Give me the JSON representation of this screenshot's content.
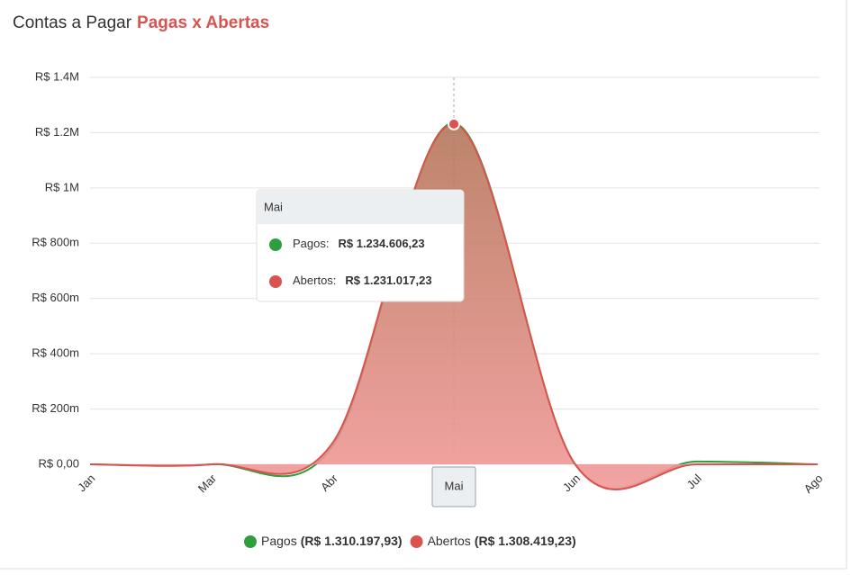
{
  "chart_data": {
    "type": "area",
    "title": "Contas a Pagar",
    "subtitle": "Pagas x Abertas",
    "categories": [
      "Jan",
      "Mar",
      "Abr",
      "Mai",
      "Jun",
      "Jul",
      "Ago"
    ],
    "series": [
      {
        "name": "Pagos",
        "color": "#2e9e3e",
        "values": [
          0,
          0,
          65592,
          1234606.23,
          0,
          10000,
          0
        ],
        "value_labels": [
          null,
          null,
          null,
          "R$ 1.234.606,23",
          null,
          null,
          null
        ],
        "total_label": "(R$ 1.310.197,93)"
      },
      {
        "name": "Abertos",
        "color": "#d9534f",
        "values": [
          0,
          0,
          77402,
          1231017.23,
          0,
          0,
          0
        ],
        "value_labels": [
          null,
          null,
          null,
          "R$ 1.231.017,23",
          null,
          null,
          null
        ],
        "total_label": "(R$ 1.308.419,23)"
      }
    ],
    "ylim": [
      0,
      1400000
    ],
    "yticks": [
      {
        "value": 0,
        "label": "R$ 0,00"
      },
      {
        "value": 200000,
        "label": "R$ 200m"
      },
      {
        "value": 400000,
        "label": "R$ 400m"
      },
      {
        "value": 600000,
        "label": "R$ 600m"
      },
      {
        "value": 800000,
        "label": "R$ 800m"
      },
      {
        "value": 1000000,
        "label": "R$ 1M"
      },
      {
        "value": 1200000,
        "label": "R$ 1.2M"
      },
      {
        "value": 1400000,
        "label": "R$ 1.4M"
      }
    ],
    "grid": true,
    "legend": "bottom",
    "tooltip": {
      "index": 3,
      "labels": [
        "Pagos:",
        "Abertos:"
      ]
    }
  }
}
